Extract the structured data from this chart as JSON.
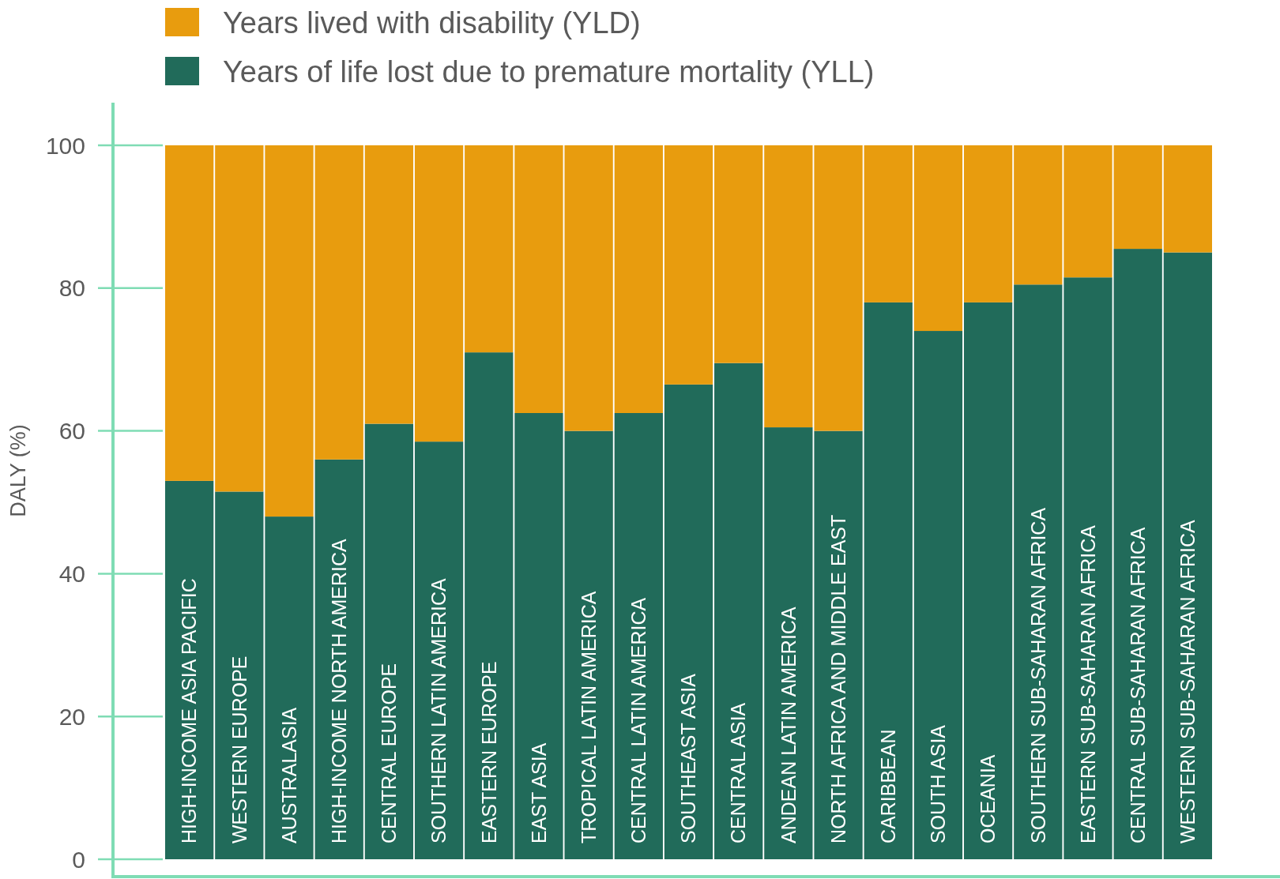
{
  "chart_data": {
    "type": "bar",
    "stacked": true,
    "ylabel": "DALY (%)",
    "legend": "top left",
    "grid": false,
    "categories": [
      "HIGH-INCOME ASIA PACIFIC",
      "WESTERN EUROPE",
      "AUSTRALASIA",
      "HIGH-INCOME NORTH AMERICA",
      "CENTRAL EUROPE",
      "SOUTHERN LATIN AMERICA",
      "EASTERN EUROPE",
      "EAST ASIA",
      "TROPICAL LATIN AMERICA",
      "CENTRAL LATIN AMERICA",
      "SOUTHEAST ASIA",
      "CENTRAL ASIA",
      "ANDEAN LATIN AMERICA",
      "NORTH AFRICA AND MIDDLE EAST",
      "CARIBBEAN",
      "SOUTH ASIA",
      "OCEANIA",
      "SOUTHERN SUB-SAHARAN AFRICA",
      "EASTERN SUB-SAHARAN AFRICA",
      "CENTRAL SUB-SAHARAN AFRICA",
      "WESTERN SUB-SAHARAN AFRICA"
    ],
    "series": [
      {
        "name": "Years of life lost due to premature mortality (YLL)",
        "color": "#216b5a",
        "values": [
          53,
          51.5,
          48,
          56,
          61,
          58.5,
          71,
          62.5,
          60,
          62.5,
          66.5,
          69.5,
          60.5,
          60,
          78,
          74,
          78,
          80.5,
          81.5,
          85.5,
          85
        ]
      },
      {
        "name": "Years lived with disability (YLD)",
        "color": "#e89c0e",
        "values": [
          47,
          48.5,
          52,
          44,
          39,
          41.5,
          29,
          37.5,
          40,
          37.5,
          33.5,
          30.5,
          39.5,
          40,
          22,
          26,
          22,
          19.5,
          18.5,
          14.5,
          15
        ]
      }
    ],
    "ylim": [
      0,
      100
    ],
    "yticks": [
      0,
      20,
      40,
      60,
      80,
      100
    ]
  }
}
